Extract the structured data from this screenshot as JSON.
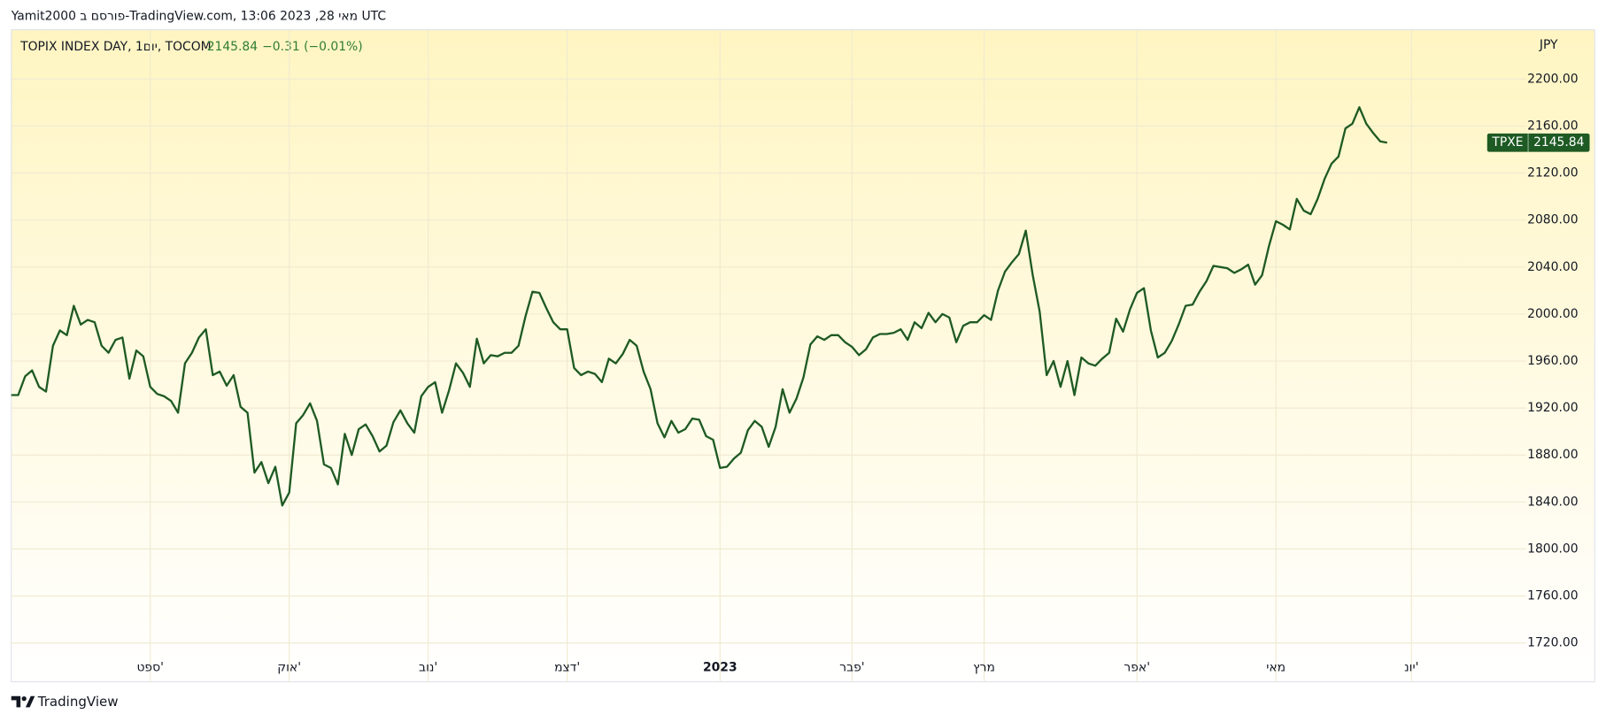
{
  "header": "Yamit2000 פורסם ב-TradingView.com, 13:06 2023 ,28 מאי UTC",
  "footer": "TradingView",
  "chart_data": {
    "type": "line",
    "legend_title": "TOPIX INDEX DAY, 1יום, TOCOM",
    "legend_price": "2145.84",
    "legend_change": "−0.31 (−0.01%)",
    "currency": "JPY",
    "symbol": "TPXE",
    "last_price": 2145.84,
    "series": [
      {
        "name": "TPXE",
        "color": "#1e5a23",
        "values": [
          1931,
          1931,
          1947,
          1952,
          1938,
          1934,
          1973,
          1986,
          1982,
          2007,
          1991,
          1995,
          1993,
          1973,
          1967,
          1978,
          1980,
          1945,
          1969,
          1964,
          1938,
          1932,
          1930,
          1926,
          1916,
          1958,
          1967,
          1980,
          1987,
          1948,
          1951,
          1939,
          1948,
          1921,
          1916,
          1865,
          1874,
          1856,
          1870,
          1837,
          1848,
          1907,
          1914,
          1924,
          1909,
          1872,
          1869,
          1855,
          1898,
          1880,
          1902,
          1906,
          1896,
          1883,
          1888,
          1908,
          1918,
          1907,
          1899,
          1930,
          1938,
          1942,
          1916,
          1935,
          1958,
          1950,
          1938,
          1979,
          1958,
          1965,
          1964,
          1967,
          1967,
          1973,
          1998,
          2019,
          2018,
          2005,
          1993,
          1987,
          1987,
          1954,
          1948,
          1951,
          1949,
          1942,
          1962,
          1958,
          1966,
          1978,
          1973,
          1951,
          1936,
          1907,
          1895,
          1909,
          1899,
          1902,
          1911,
          1910,
          1896,
          1893,
          1869,
          1870,
          1877,
          1882,
          1901,
          1909,
          1904,
          1887,
          1904,
          1936,
          1916,
          1928,
          1946,
          1974,
          1981,
          1978,
          1982,
          1982,
          1976,
          1972,
          1965,
          1970,
          1980,
          1983,
          1983,
          1984,
          1987,
          1978,
          1993,
          1988,
          2001,
          1993,
          2000,
          1997,
          1976,
          1990,
          1993,
          1993,
          1999,
          1995,
          2020,
          2036,
          2044,
          2051,
          2071,
          2033,
          2002,
          1948,
          1960,
          1938,
          1960,
          1931,
          1963,
          1958,
          1956,
          1962,
          1967,
          1996,
          1985,
          2004,
          2018,
          2022,
          1986,
          1963,
          1967,
          1977,
          1991,
          2007,
          2008,
          2019,
          2028,
          2041,
          2040,
          2039,
          2035,
          2038,
          2042,
          2025,
          2033,
          2058,
          2079,
          2076,
          2072,
          2098,
          2088,
          2085,
          2098,
          2115,
          2128,
          2134,
          2158,
          2162,
          2176,
          2162,
          2154,
          2147,
          2145.84
        ]
      }
    ],
    "xlim": [
      0,
      218
    ],
    "xticks": [
      {
        "value": 20,
        "label": "ספט'"
      },
      {
        "value": 40,
        "label": "אוק'"
      },
      {
        "value": 60,
        "label": "נוב'"
      },
      {
        "value": 80,
        "label": "דצמ'"
      },
      {
        "value": 102,
        "label": "2023"
      },
      {
        "value": 121,
        "label": "פבר'"
      },
      {
        "value": 140,
        "label": "מרץ"
      },
      {
        "value": 162,
        "label": "אפר'"
      },
      {
        "value": 182,
        "label": "מאי"
      },
      {
        "value": 201.5,
        "label": "יונ'"
      }
    ],
    "ylim": [
      1687,
      2242
    ],
    "yticks": [
      {
        "value": 1720,
        "label": "1720.00"
      },
      {
        "value": 1760,
        "label": "1760.00"
      },
      {
        "value": 1800,
        "label": "1800.00"
      },
      {
        "value": 1840,
        "label": "1840.00"
      },
      {
        "value": 1880,
        "label": "1880.00"
      },
      {
        "value": 1920,
        "label": "1920.00"
      },
      {
        "value": 1960,
        "label": "1960.00"
      },
      {
        "value": 2000,
        "label": "2000.00"
      },
      {
        "value": 2040,
        "label": "2040.00"
      },
      {
        "value": 2080,
        "label": "2080.00"
      },
      {
        "value": 2120,
        "label": "2120.00"
      },
      {
        "value": 2160,
        "label": "2160.00"
      },
      {
        "value": 2200,
        "label": "2200.00"
      }
    ],
    "grid": true
  }
}
